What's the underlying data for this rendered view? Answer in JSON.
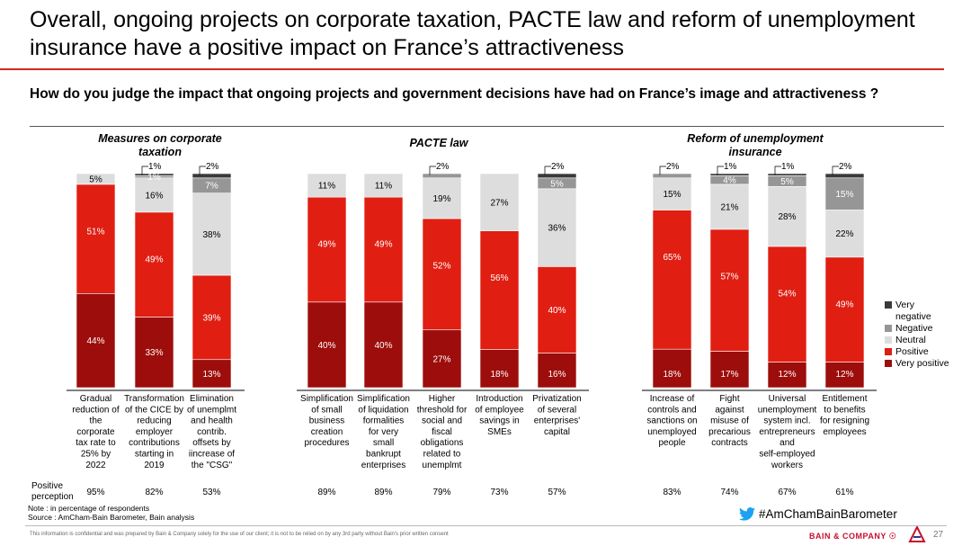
{
  "title": "Overall, ongoing projects on corporate taxation, PACTE law and reform of unemployment insurance have a positive impact on France’s attractiveness",
  "question": "How do you judge the impact that ongoing projects and government decisions have had on France’s image and attractiveness ?",
  "colors": {
    "very_negative": "#3a3a3a",
    "negative": "#969696",
    "neutral": "#dddddd",
    "positive": "#e01e12",
    "very_positive": "#9c0d0b"
  },
  "chart_data": {
    "type": "bar",
    "stacked": true,
    "unit": "% of respondents",
    "groups": [
      {
        "title": [
          "Measures on corporate",
          "taxation"
        ],
        "categories": [
          0,
          1,
          2
        ]
      },
      {
        "title": [
          "PACTE law"
        ],
        "categories": [
          3,
          4,
          5,
          6,
          7
        ]
      },
      {
        "title": [
          "Reform of unemployment",
          "insurance"
        ],
        "categories": [
          8,
          9,
          10,
          11
        ]
      }
    ],
    "categories": [
      [
        "Gradual",
        "reduction of",
        "the",
        "corporate",
        "tax rate to",
        "25% by",
        "2022"
      ],
      [
        "Transformation",
        "of the CICE by",
        "reducing",
        "employer",
        "contributions",
        "starting in",
        "2019"
      ],
      [
        "Elimination",
        "of unemplmt",
        "and health",
        "contrib.",
        "offsets by",
        "iincrease of",
        "the \"CSG\""
      ],
      [
        "Simplification",
        "of small",
        "business",
        "creation",
        "procedures"
      ],
      [
        "Simplification",
        "of liquidation",
        "formalities",
        "for very",
        "small",
        "bankrupt",
        "enterprises"
      ],
      [
        "Higher",
        "threshold for",
        "social and",
        "fiscal",
        "obligations",
        "related to",
        "unemplmt"
      ],
      [
        "Introduction",
        "of employee",
        "savings in",
        "SMEs"
      ],
      [
        "Privatization",
        "of several",
        "enterprises'",
        "capital"
      ],
      [
        "Increase of",
        "controls and",
        "sanctions on",
        "unemployed",
        "people"
      ],
      [
        "Fight",
        "against",
        "misuse of",
        "precarious",
        "contracts"
      ],
      [
        "Universal",
        "unemployment",
        "system incl.",
        "entrepreneurs",
        "and",
        "self-employed",
        "workers"
      ],
      [
        "Entitlement",
        "to benefits",
        "for resigning",
        "employees"
      ]
    ],
    "series": [
      {
        "name": "Very positive",
        "key": "very_positive",
        "values": [
          44,
          33,
          13,
          40,
          40,
          27,
          18,
          16,
          18,
          17,
          12,
          12
        ]
      },
      {
        "name": "Positive",
        "key": "positive",
        "values": [
          51,
          49,
          39,
          49,
          49,
          52,
          56,
          40,
          65,
          57,
          54,
          49
        ]
      },
      {
        "name": "Neutral",
        "key": "neutral",
        "values": [
          5,
          16,
          38,
          11,
          11,
          19,
          27,
          36,
          15,
          21,
          28,
          22
        ]
      },
      {
        "name": "Negative",
        "key": "negative",
        "values": [
          0,
          1,
          7,
          0,
          0,
          2,
          0,
          5,
          2,
          4,
          5,
          15
        ]
      },
      {
        "name": "Very negative",
        "key": "very_negative",
        "values": [
          0,
          1,
          2,
          0,
          0,
          0,
          0,
          2,
          0,
          1,
          1,
          2
        ]
      }
    ],
    "data_labels": [
      [
        {
          "t": "44%"
        },
        {
          "t": "51%"
        },
        {
          "t": "5%"
        }
      ],
      [
        {
          "t": "33%"
        },
        {
          "t": "49%"
        },
        {
          "t": "16%"
        },
        {
          "t": "1%"
        },
        {
          "t": "1%",
          "callout": true
        }
      ],
      [
        {
          "t": "13%"
        },
        {
          "t": "39%"
        },
        {
          "t": "38%"
        },
        {
          "t": "7%"
        },
        {
          "t": "2%",
          "callout": true
        }
      ],
      [
        {
          "t": "40%"
        },
        {
          "t": "49%"
        },
        {
          "t": "11%"
        }
      ],
      [
        {
          "t": "40%"
        },
        {
          "t": "49%"
        },
        {
          "t": "11%"
        }
      ],
      [
        {
          "t": "27%"
        },
        {
          "t": "52%"
        },
        {
          "t": "19%"
        },
        {
          "t": "2%",
          "callout": true
        }
      ],
      [
        {
          "t": "18%"
        },
        {
          "t": "56%"
        },
        {
          "t": "27%"
        }
      ],
      [
        {
          "t": "16%"
        },
        {
          "t": "40%"
        },
        {
          "t": "36%"
        },
        {
          "t": "5%"
        },
        {
          "t": "2%",
          "callout": true
        }
      ],
      [
        {
          "t": "18%"
        },
        {
          "t": "65%"
        },
        {
          "t": "15%"
        },
        {
          "t": "2%",
          "callout": true
        }
      ],
      [
        {
          "t": "17%"
        },
        {
          "t": "57%"
        },
        {
          "t": "21%"
        },
        {
          "t": "4%"
        },
        {
          "t": "1%",
          "callout": true
        }
      ],
      [
        {
          "t": "12%"
        },
        {
          "t": "54%"
        },
        {
          "t": "28%"
        },
        {
          "t": "5%"
        },
        {
          "t": "1%",
          "callout": true
        }
      ],
      [
        {
          "t": "12%"
        },
        {
          "t": "49%"
        },
        {
          "t": "22%"
        },
        {
          "t": "15%"
        },
        {
          "t": "2%",
          "callout": true
        }
      ]
    ],
    "positive_perception_label": [
      "Positive",
      "perception"
    ],
    "positive_perception": [
      "95%",
      "82%",
      "53%",
      "89%",
      "89%",
      "79%",
      "73%",
      "57%",
      "83%",
      "74%",
      "67%",
      "61%"
    ],
    "legend": [
      {
        "key": "very_negative",
        "label": "Very negative"
      },
      {
        "key": "negative",
        "label": "Negative"
      },
      {
        "key": "neutral",
        "label": "Neutral"
      },
      {
        "key": "positive",
        "label": "Positive"
      },
      {
        "key": "very_positive",
        "label": "Very positive"
      }
    ]
  },
  "note": "Note : in percentage of respondents",
  "source": "Source : AmCham-Bain Barometer, Bain analysis",
  "hashtag": "#AmChamBainBarometer",
  "disclaimer": "This information is confidential and was prepared by Bain & Company solely for the use of our client; it is not to be relied on by any 3rd party without Bain's prior written consent",
  "brand": "BAIN & COMPANY",
  "page_number": "27"
}
